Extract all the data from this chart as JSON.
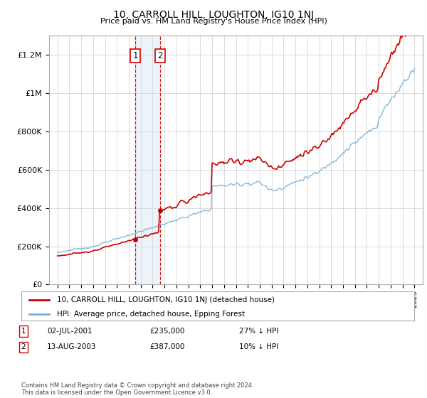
{
  "title": "10, CARROLL HILL, LOUGHTON, IG10 1NJ",
  "subtitle": "Price paid vs. HM Land Registry's House Price Index (HPI)",
  "legend_line1": "10, CARROLL HILL, LOUGHTON, IG10 1NJ (detached house)",
  "legend_line2": "HPI: Average price, detached house, Epping Forest",
  "transaction1_date": "02-JUL-2001",
  "transaction1_price": "£235,000",
  "transaction1_hpi": "27% ↓ HPI",
  "transaction2_date": "13-AUG-2003",
  "transaction2_price": "£387,000",
  "transaction2_hpi": "10% ↓ HPI",
  "footnote": "Contains HM Land Registry data © Crown copyright and database right 2024.\nThis data is licensed under the Open Government Licence v3.0.",
  "hpi_color": "#7ab0d4",
  "property_color": "#cc0000",
  "shade_color": "#cce0f0",
  "ylim_min": 0,
  "ylim_max": 1300000,
  "yticks": [
    0,
    200000,
    400000,
    600000,
    800000,
    1000000,
    1200000
  ],
  "price_t1": 235000,
  "price_t2": 387000,
  "year_t1": 2001.54,
  "year_t2": 2003.62
}
